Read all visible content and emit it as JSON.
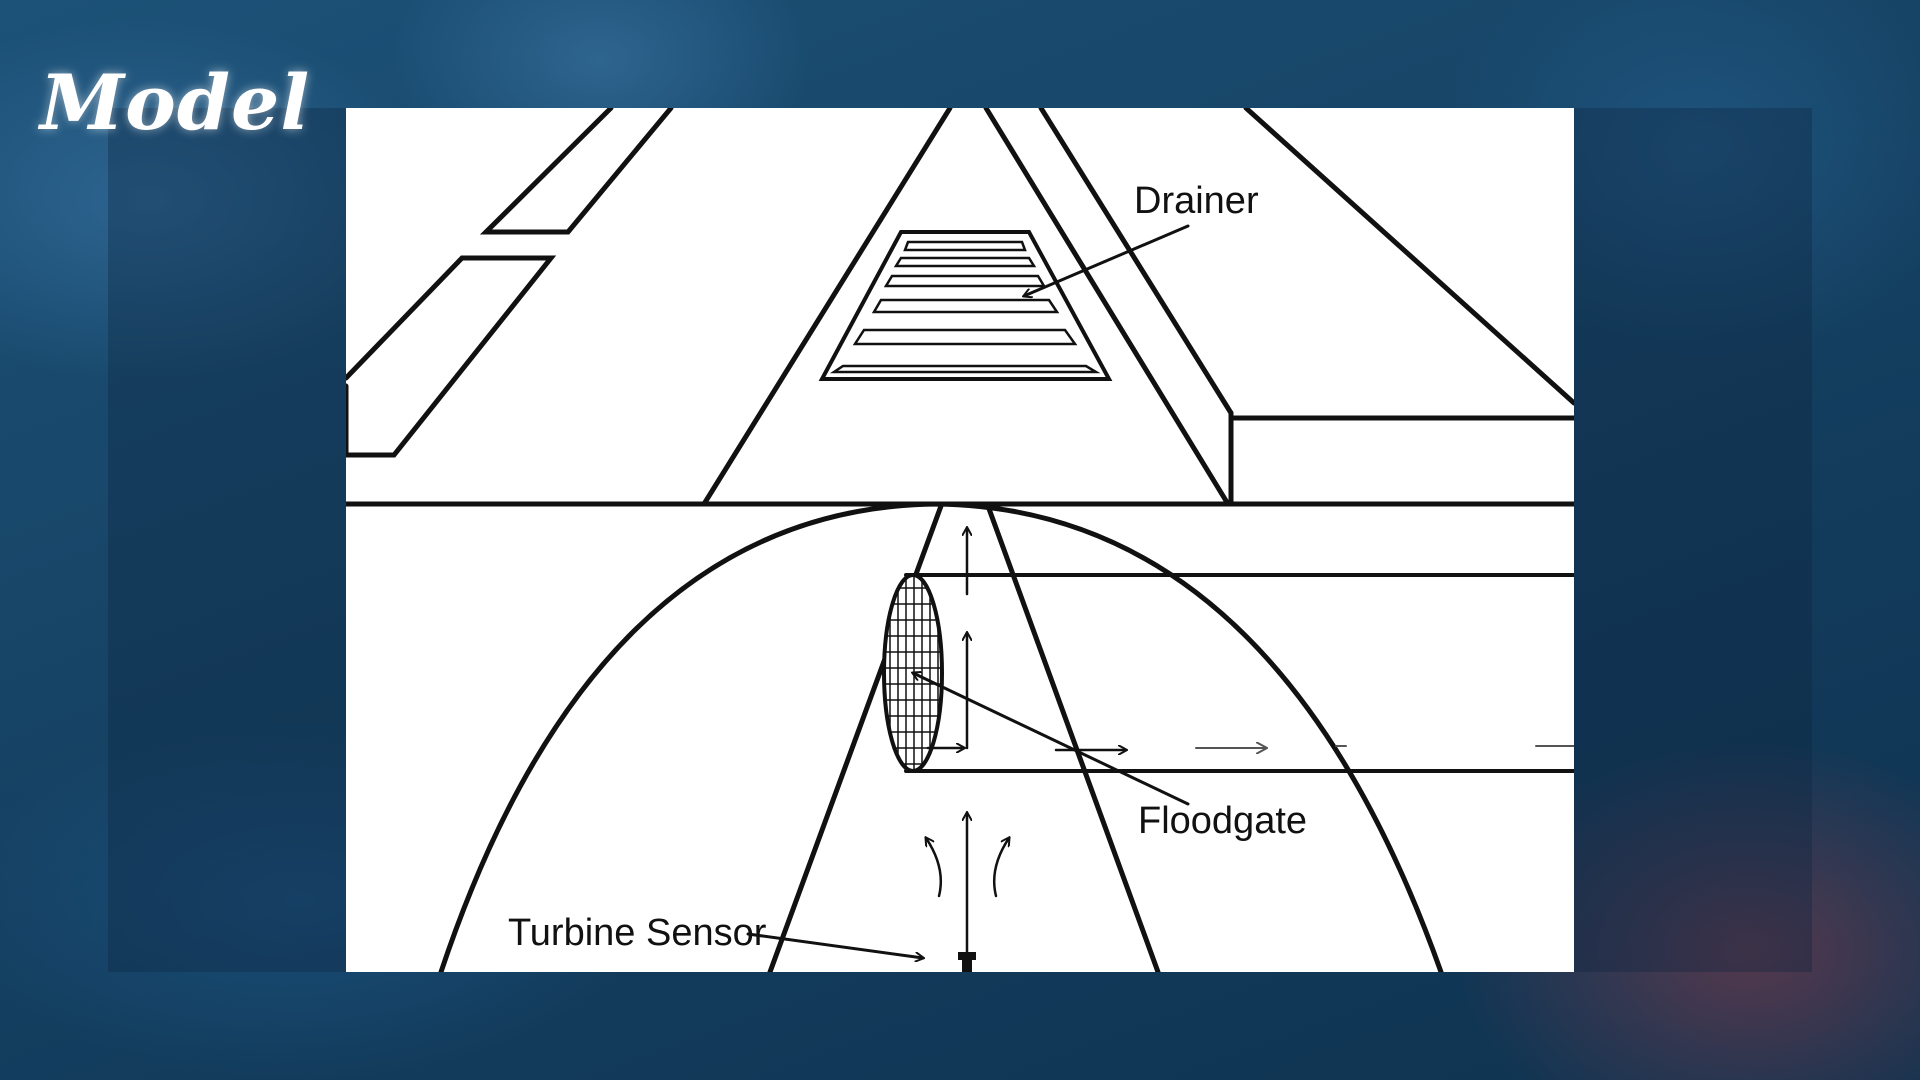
{
  "slide": {
    "title": "Model"
  },
  "diagram": {
    "labels": {
      "drainer": "Drainer",
      "floodgate": "Floodgate",
      "turbine_sensor": "Turbine Sensor"
    }
  },
  "colors": {
    "background": "#1a4a6e",
    "panel": "#ffffff",
    "ink": "#111111",
    "title": "#ffffff"
  }
}
